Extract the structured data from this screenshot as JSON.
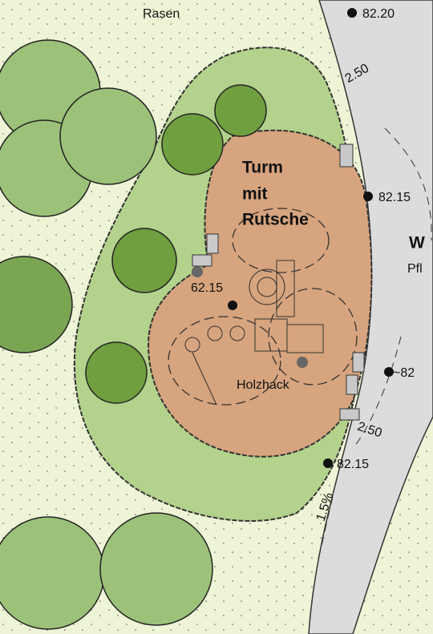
{
  "labels": {
    "lawn": "Rasen",
    "elevation_top": "82.20",
    "width_top": "2.50",
    "tower": [
      "Turm",
      "mit",
      "Rutsche"
    ],
    "elevation_right": "82.15",
    "path_title": "W",
    "path_sub": "Pfl",
    "elevation_play": "62.15",
    "surface": "Holzhack",
    "elevation_mid": "~82",
    "width_bottom": "2.50",
    "elevation_bottom": "82.15",
    "slope": "1.5%"
  }
}
